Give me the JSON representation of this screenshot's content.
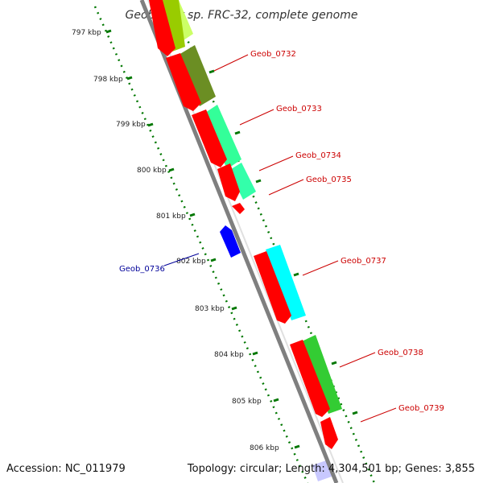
{
  "map": {
    "title": "Geobacter sp. FRC-32, complete genome",
    "accession_text": "Accession: NC_011979",
    "summary_text": "Topology: circular; Length: 4,304,501 bp; Genes: 3,855",
    "accession": "NC_011979",
    "topology": "circular",
    "length_bp": 4304501,
    "gene_count": 3855
  },
  "ticks": [
    {
      "label": "797 kbp"
    },
    {
      "label": "798 kbp"
    },
    {
      "label": "799 kbp"
    },
    {
      "label": "800 kbp"
    },
    {
      "label": "801 kbp"
    },
    {
      "label": "802 kbp"
    },
    {
      "label": "803 kbp"
    },
    {
      "label": "804 kbp"
    },
    {
      "label": "805 kbp"
    },
    {
      "label": "806 kbp"
    }
  ],
  "genes": [
    {
      "label": "Geob_0732",
      "strand": "forward",
      "color": "#ff0000",
      "similarity_color": "#6b8e23"
    },
    {
      "label": "Geob_0733",
      "strand": "forward",
      "color": "#ff0000",
      "similarity_color": "#33ff99"
    },
    {
      "label": "Geob_0734",
      "strand": "forward",
      "color": "#ff0000",
      "similarity_color": "#33ff99"
    },
    {
      "label": "Geob_0735",
      "strand": "forward",
      "color": "#ff0000",
      "similarity_color": ""
    },
    {
      "label": "Geob_0736",
      "strand": "reverse",
      "color": "#0000ff",
      "similarity_color": ""
    },
    {
      "label": "Geob_0737",
      "strand": "forward",
      "color": "#ff0000",
      "similarity_color": "#00ffff"
    },
    {
      "label": "Geob_0738",
      "strand": "forward",
      "color": "#ff0000",
      "similarity_color": "#33cc33"
    },
    {
      "label": "Geob_0739",
      "strand": "forward",
      "color": "#ff0000",
      "similarity_color": ""
    }
  ],
  "colors": {
    "forward_gene": "#ff0000",
    "reverse_gene": "#0000ff",
    "forward_label": "#cc0000",
    "reverse_label": "#000099",
    "backbone": "#808080",
    "tick": "#007700"
  }
}
